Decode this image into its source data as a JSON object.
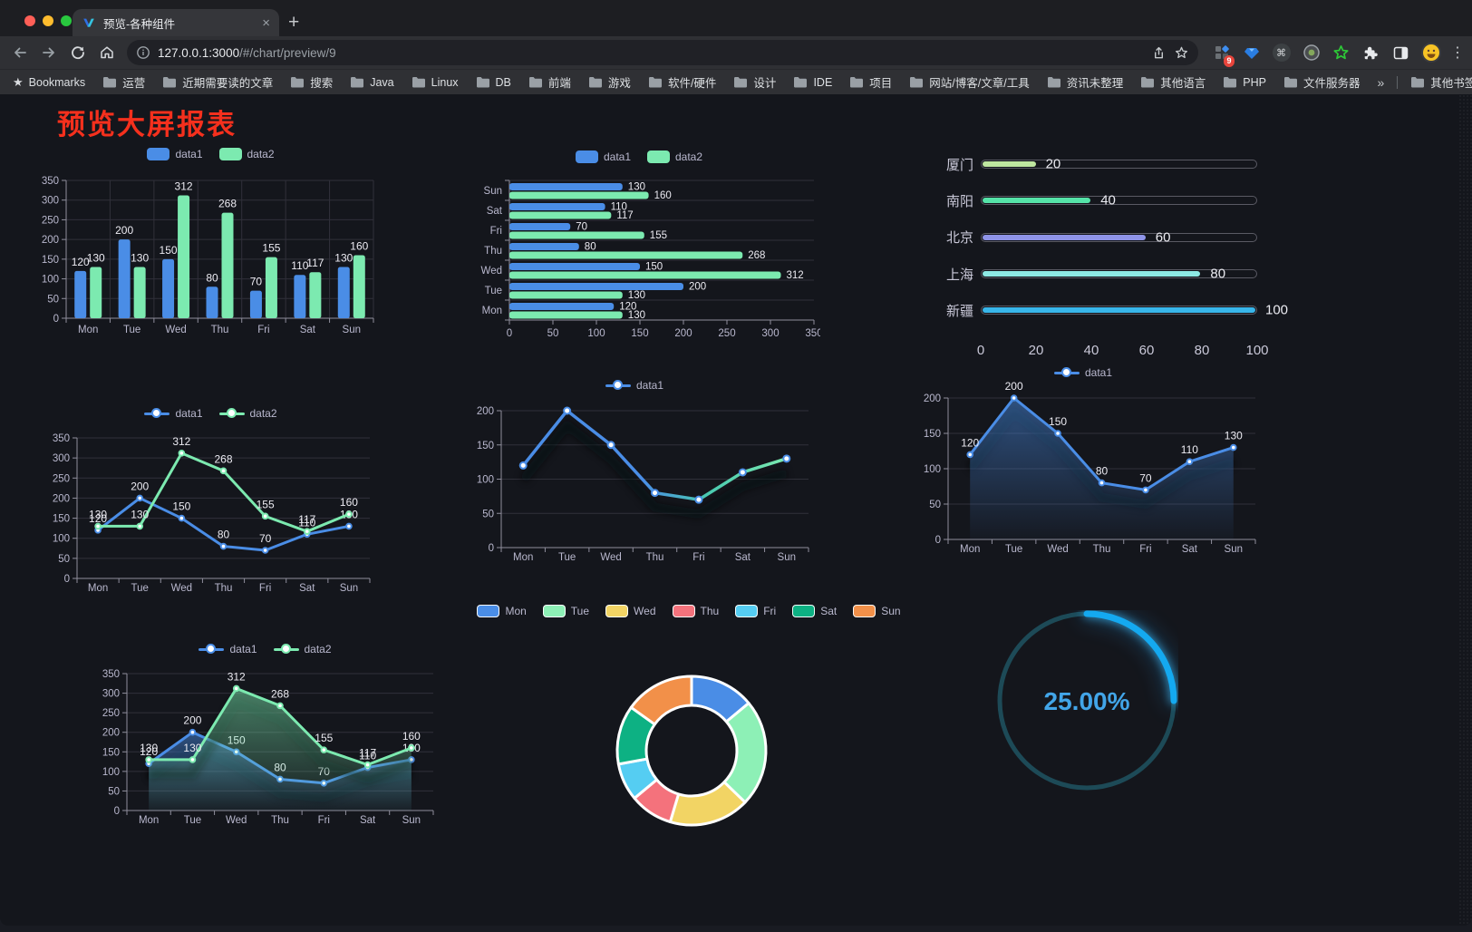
{
  "browser": {
    "tab_title": "预览-各种组件",
    "url_host": "127.0.0.1:3000",
    "url_path": "/#/chart/preview/9",
    "bookmarks_label": "Bookmarks",
    "bookmark_folders": [
      "运营",
      "近期需要读的文章",
      "搜索",
      "Java",
      "Linux",
      "DB",
      "前端",
      "游戏",
      "软件/硬件",
      "设计",
      "IDE",
      "项目",
      "网站/博客/文章/工具",
      "资讯未整理",
      "其他语言",
      "PHP",
      "文件服务器"
    ],
    "other_bookmarks_label": "其他书签",
    "extension_badge": "9",
    "icons": {
      "close": "×",
      "new_tab": "+",
      "overflow": "»",
      "menu": "⋮",
      "bookmark_star": "★",
      "command": "⌘"
    }
  },
  "page": {
    "title": "预览大屏报表",
    "title_color": "#f5301d"
  },
  "chart_data": [
    {
      "id": "grouped-bar-chart",
      "type": "bar",
      "legend_position": "top",
      "categories": [
        "Mon",
        "Tue",
        "Wed",
        "Thu",
        "Fri",
        "Sat",
        "Sun"
      ],
      "series": [
        {
          "name": "data1",
          "color": "#4a8de6",
          "values": [
            120,
            200,
            150,
            80,
            70,
            110,
            130
          ]
        },
        {
          "name": "data2",
          "color": "#7ceab0",
          "values": [
            130,
            130,
            312,
            268,
            155,
            117,
            160
          ]
        }
      ],
      "ylim": [
        0,
        350
      ],
      "ystep": 50
    },
    {
      "id": "horizontal-bar-chart",
      "type": "bar",
      "orientation": "horizontal",
      "legend_position": "top",
      "categories": [
        "Mon",
        "Tue",
        "Wed",
        "Thu",
        "Fri",
        "Sat",
        "Sun"
      ],
      "series": [
        {
          "name": "data1",
          "color": "#4a8de6",
          "values": [
            120,
            200,
            150,
            80,
            70,
            110,
            130
          ]
        },
        {
          "name": "data2",
          "color": "#7ceab0",
          "values": [
            130,
            130,
            312,
            268,
            155,
            117,
            160
          ]
        }
      ],
      "xlim": [
        0,
        350
      ],
      "xstep": 50
    },
    {
      "id": "city-progress-chart",
      "type": "bar",
      "orientation": "progress",
      "categories": [
        "厦门",
        "南阳",
        "北京",
        "上海",
        "新疆"
      ],
      "values": [
        20,
        40,
        60,
        80,
        100
      ],
      "colors": [
        "#bfe7a0",
        "#55e3a8",
        "#8f94e8",
        "#8de9e4",
        "#38b6ea"
      ],
      "xlim": [
        0,
        100
      ],
      "xticks": [
        0,
        20,
        40,
        60,
        80,
        100
      ]
    },
    {
      "id": "two-series-line-chart",
      "type": "line",
      "categories": [
        "Mon",
        "Tue",
        "Wed",
        "Thu",
        "Fri",
        "Sat",
        "Sun"
      ],
      "series": [
        {
          "name": "data1",
          "color": "#4a8de6",
          "values": [
            120,
            200,
            150,
            80,
            70,
            110,
            130
          ]
        },
        {
          "name": "data2",
          "color": "#7ceab0",
          "values": [
            130,
            130,
            312,
            268,
            155,
            117,
            160
          ]
        }
      ],
      "ylim": [
        0,
        350
      ],
      "ystep": 50
    },
    {
      "id": "gradient-line-chart",
      "type": "line",
      "categories": [
        "Mon",
        "Tue",
        "Wed",
        "Thu",
        "Fri",
        "Sat",
        "Sun"
      ],
      "series": [
        {
          "name": "data1",
          "color": "#4a8de6",
          "gradient": [
            "#4a8de6",
            "#49c9b0",
            "#7ceab0"
          ],
          "values": [
            120,
            200,
            150,
            80,
            70,
            110,
            130
          ]
        }
      ],
      "ylim": [
        0,
        200
      ],
      "ystep": 50
    },
    {
      "id": "area-line-chart",
      "type": "area",
      "categories": [
        "Mon",
        "Tue",
        "Wed",
        "Thu",
        "Fri",
        "Sat",
        "Sun"
      ],
      "series": [
        {
          "name": "data1",
          "color": "#4a8de6",
          "values": [
            120,
            200,
            150,
            80,
            70,
            110,
            130
          ]
        }
      ],
      "ylim": [
        0,
        200
      ],
      "ystep": 50
    },
    {
      "id": "two-series-area-chart",
      "type": "area",
      "categories": [
        "Mon",
        "Tue",
        "Wed",
        "Thu",
        "Fri",
        "Sat",
        "Sun"
      ],
      "series": [
        {
          "name": "data1",
          "color": "#4a8de6",
          "values": [
            120,
            200,
            150,
            80,
            70,
            110,
            130
          ]
        },
        {
          "name": "data2",
          "color": "#7ceab0",
          "values": [
            130,
            130,
            312,
            268,
            155,
            117,
            160
          ]
        }
      ],
      "ylim": [
        0,
        350
      ],
      "ystep": 50
    },
    {
      "id": "donut-chart",
      "type": "pie",
      "categories": [
        "Mon",
        "Tue",
        "Wed",
        "Thu",
        "Fri",
        "Sat",
        "Sun"
      ],
      "values": [
        120,
        200,
        150,
        80,
        70,
        110,
        130
      ],
      "colors": [
        "#4a8de6",
        "#8df0b6",
        "#f2d464",
        "#f4727c",
        "#55cdf2",
        "#0db183",
        "#f29049"
      ]
    },
    {
      "id": "gauge-chart",
      "type": "gauge",
      "percent": 25,
      "label": "25.00%",
      "color": "#14a9f0",
      "track_color": "#1d4a57",
      "text_color": "#42a5e8"
    }
  ]
}
